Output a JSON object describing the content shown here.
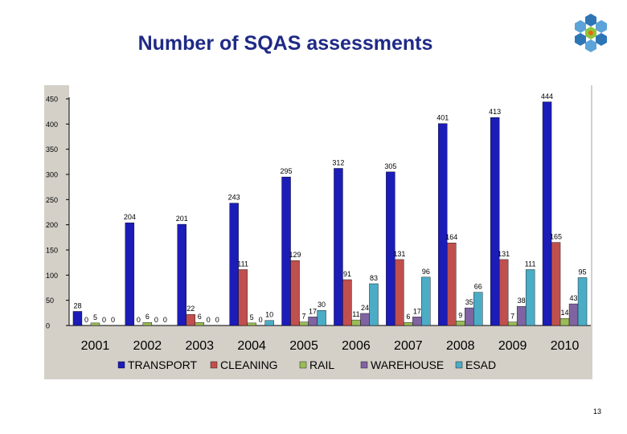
{
  "slide": {
    "title": "Number of SQAS assessments",
    "page_number": "13"
  },
  "colors": {
    "TRANSPORT": "#1C1CB8",
    "CLEANING": "#C0504D",
    "RAIL": "#9BBB59",
    "WAREHOUSE": "#8064A2",
    "ESAD": "#4BACC6"
  },
  "chart_data": {
    "type": "bar",
    "title": "Number of SQAS assessments",
    "xlabel": "",
    "ylabel": "",
    "ylim": [
      0,
      450
    ],
    "yticks": [
      0,
      50,
      100,
      150,
      200,
      250,
      300,
      350,
      400,
      450
    ],
    "grid": false,
    "legend": "bottom",
    "categories": [
      "2001",
      "2002",
      "2003",
      "2004",
      "2005",
      "2006",
      "2007",
      "2008",
      "2009",
      "2010"
    ],
    "series": [
      {
        "name": "TRANSPORT",
        "values": [
          28,
          204,
          201,
          243,
          295,
          312,
          305,
          401,
          413,
          444
        ]
      },
      {
        "name": "CLEANING",
        "values": [
          0,
          0,
          22,
          111,
          129,
          91,
          131,
          164,
          131,
          165
        ]
      },
      {
        "name": "RAIL",
        "values": [
          5,
          6,
          6,
          5,
          7,
          11,
          6,
          9,
          7,
          14
        ]
      },
      {
        "name": "WAREHOUSE",
        "values": [
          0,
          0,
          0,
          0,
          17,
          24,
          17,
          35,
          38,
          43
        ]
      },
      {
        "name": "ESAD",
        "values": [
          0,
          0,
          0,
          10,
          30,
          83,
          96,
          66,
          111,
          95
        ]
      }
    ]
  }
}
